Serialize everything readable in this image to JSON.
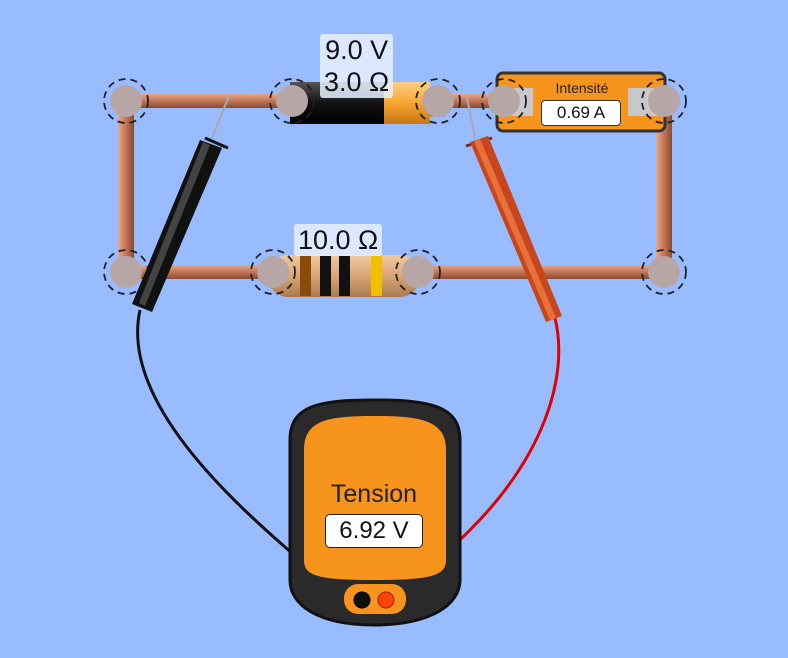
{
  "battery": {
    "voltage_label": "9.0 V",
    "resistance_label": "3.0 Ω"
  },
  "resistor": {
    "label": "10.0 Ω"
  },
  "ammeter": {
    "title": "Intensité",
    "reading": "0.69 A"
  },
  "voltmeter": {
    "title": "Tension",
    "reading": "6.92 V"
  },
  "colors": {
    "background": "#99bbff",
    "wire": "#c87a5a",
    "meter_body": "#f7941d",
    "black_probe": "#111111",
    "red_probe": "#c8461c",
    "red_cable": "#e00000"
  }
}
